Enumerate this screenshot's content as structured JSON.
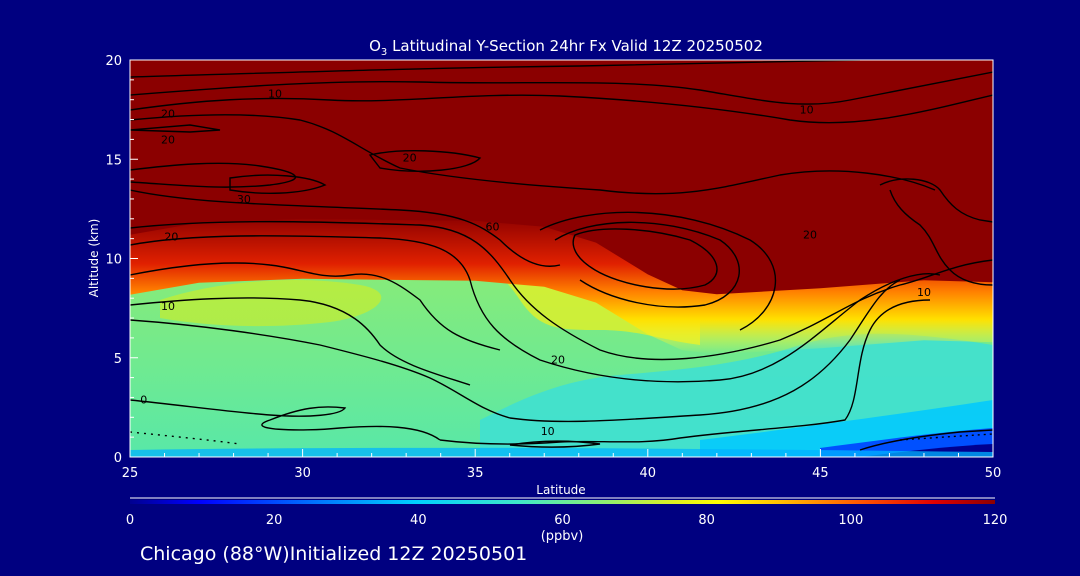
{
  "chart_data": {
    "type": "heatmap",
    "title_prefix": "O",
    "title_subscript": "3",
    "title_rest": " Latitudinal Y-Section 24hr  Fx Valid 12Z 20250502",
    "xlabel": "Latitude",
    "ylabel": "Altitude (km)",
    "xlim": [
      25,
      50
    ],
    "ylim": [
      0,
      20
    ],
    "xticks": [
      25,
      30,
      35,
      40,
      45,
      50
    ],
    "yticks": [
      0,
      5,
      10,
      15,
      20
    ],
    "colorbar": {
      "ticks": [
        0,
        20,
        40,
        60,
        80,
        100,
        120
      ],
      "unit": "(ppbv)",
      "range": [
        0,
        120
      ],
      "colors": [
        "#00008b",
        "#0000ff",
        "#00c8ff",
        "#40e0d0",
        "#7cfc70",
        "#d8f020",
        "#ffff00",
        "#ffa500",
        "#ff3000",
        "#8b0000"
      ]
    },
    "tropopause_height_km": [
      {
        "lat": 25,
        "alt": 11.2
      },
      {
        "lat": 27,
        "alt": 11.8
      },
      {
        "lat": 30,
        "alt": 12.0
      },
      {
        "lat": 35,
        "alt": 11.9
      },
      {
        "lat": 37,
        "alt": 11.6
      },
      {
        "lat": 38.5,
        "alt": 10.8
      },
      {
        "lat": 40,
        "alt": 9.2
      },
      {
        "lat": 41,
        "alt": 8.4
      },
      {
        "lat": 42,
        "alt": 8.2
      },
      {
        "lat": 45,
        "alt": 8.5
      },
      {
        "lat": 48,
        "alt": 8.9
      },
      {
        "lat": 50,
        "alt": 8.8
      }
    ],
    "contour_labels": [
      {
        "text": "10",
        "lat": 29.2,
        "alt": 18.3
      },
      {
        "text": "20",
        "lat": 26.1,
        "alt": 17.3
      },
      {
        "text": "20",
        "lat": 26.1,
        "alt": 16.0
      },
      {
        "text": "10",
        "lat": 44.6,
        "alt": 17.5
      },
      {
        "text": "20",
        "lat": 33.1,
        "alt": 15.1
      },
      {
        "text": "30",
        "lat": 28.3,
        "alt": 13.0
      },
      {
        "text": "60",
        "lat": 35.5,
        "alt": 11.6
      },
      {
        "text": "20",
        "lat": 26.2,
        "alt": 11.1
      },
      {
        "text": "20",
        "lat": 44.7,
        "alt": 11.2
      },
      {
        "text": "10",
        "lat": 48.0,
        "alt": 8.3
      },
      {
        "text": "10",
        "lat": 26.1,
        "alt": 7.6
      },
      {
        "text": "20",
        "lat": 37.4,
        "alt": 4.9
      },
      {
        "text": "10",
        "lat": 37.1,
        "alt": 1.3
      },
      {
        "text": "0",
        "lat": 25.4,
        "alt": 2.9
      }
    ]
  },
  "footer": {
    "text": "Chicago (88°W)Initialized 12Z 20250501"
  },
  "colors": {
    "background": "#000080",
    "stratosphere": "#8b0000"
  }
}
